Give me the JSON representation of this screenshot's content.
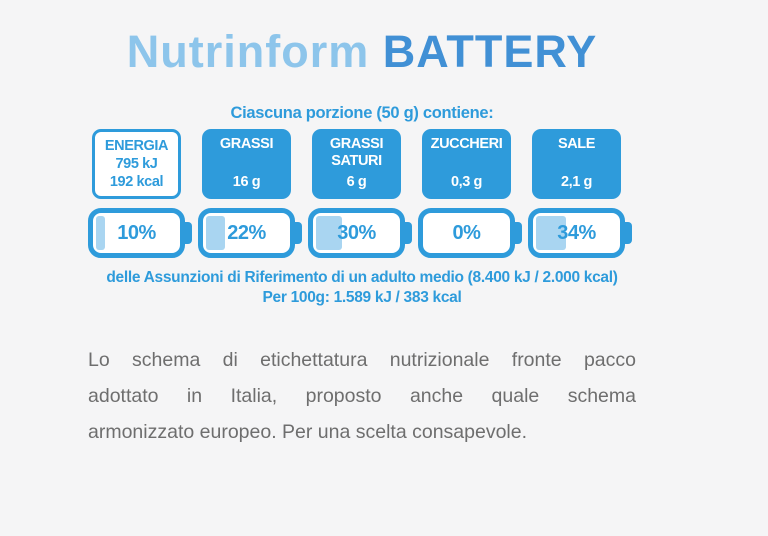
{
  "title": {
    "light": "Nutrinform",
    "dark": "BATTERY"
  },
  "label": {
    "header": "Ciascuna porzione (50 g) contiene:",
    "nutrients": [
      {
        "name": "ENERGIA",
        "value": "795 kJ\n192 kcal",
        "percent": "10%",
        "percent_value": 10
      },
      {
        "name": "GRASSI",
        "value": "16 g",
        "percent": "22%",
        "percent_value": 22
      },
      {
        "name": "GRASSI SATURI",
        "value": "6 g",
        "percent": "30%",
        "percent_value": 30
      },
      {
        "name": "ZUCCHERI",
        "value": "0,3 g",
        "percent": "0%",
        "percent_value": 0
      },
      {
        "name": "SALE",
        "value": "2,1 g",
        "percent": "34%",
        "percent_value": 34
      }
    ],
    "footnote_line1": "delle Assunzioni di Riferimento di un adulto medio (8.400 kJ / 2.000 kcal)",
    "footnote_line2": "Per 100g: 1.589 kJ / 383 kcal"
  },
  "description": {
    "lines": [
      "Lo schema di etichettatura nutrizionale fronte pacco",
      "adottato in Italia, proposto anche quale schema",
      "armonizzato europeo. Per una scelta consapevole."
    ]
  },
  "colors": {
    "background": "#f5f5f6",
    "label_blue": "#2e9bdb",
    "battery_fill_light_blue": "#a9d5f1",
    "title_light_blue": "#8dc5eb",
    "title_dark_blue": "#4190d5",
    "description_gray": "#6e6e6e"
  }
}
